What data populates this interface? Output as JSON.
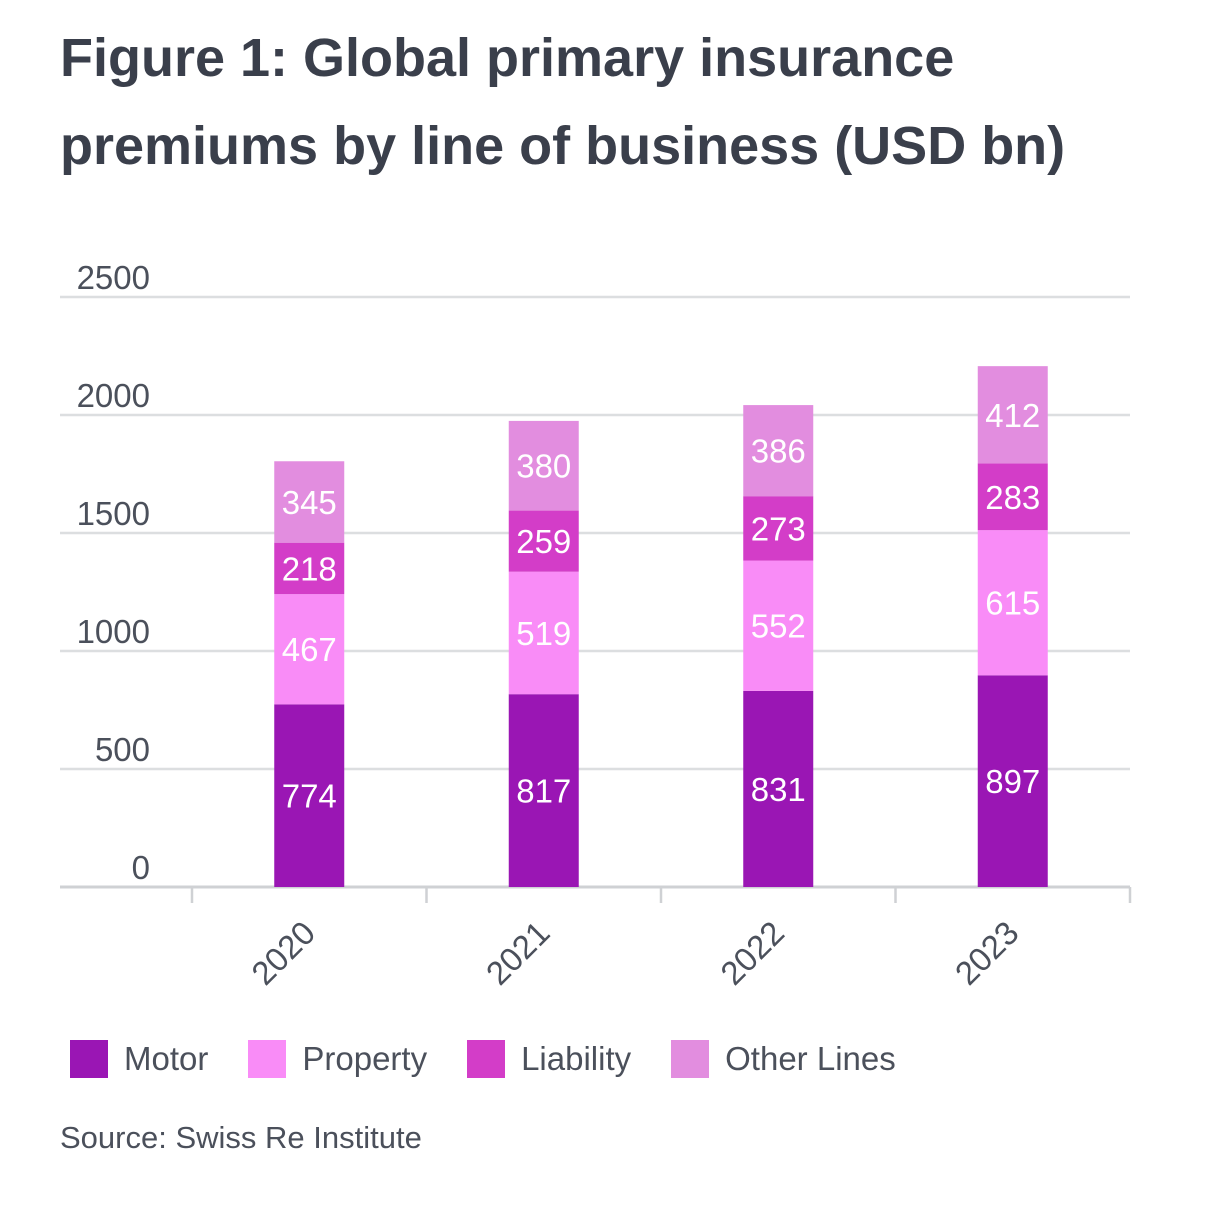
{
  "title": "Figure 1: Global primary insurance premiums by line of business (USD bn)",
  "source": "Source: Swiss Re Institute",
  "chart_data": {
    "type": "bar",
    "stacked": true,
    "categories": [
      "2020",
      "2021",
      "2022",
      "2023"
    ],
    "series": [
      {
        "name": "Motor",
        "color": "#9a16b4",
        "values": [
          774,
          817,
          831,
          897
        ]
      },
      {
        "name": "Property",
        "color": "#f98cf7",
        "values": [
          467,
          519,
          552,
          615
        ]
      },
      {
        "name": "Liability",
        "color": "#d33dc8",
        "values": [
          218,
          259,
          273,
          283
        ]
      },
      {
        "name": "Other Lines",
        "color": "#e28ddf",
        "values": [
          345,
          380,
          386,
          412
        ]
      }
    ],
    "ylim": [
      0,
      2500
    ],
    "yticks": [
      "0",
      "500",
      "1000",
      "1500",
      "2000",
      "2500"
    ],
    "grid": true,
    "legend_position": "bottom-left",
    "data_labels": true,
    "xlabel": "",
    "ylabel": ""
  }
}
